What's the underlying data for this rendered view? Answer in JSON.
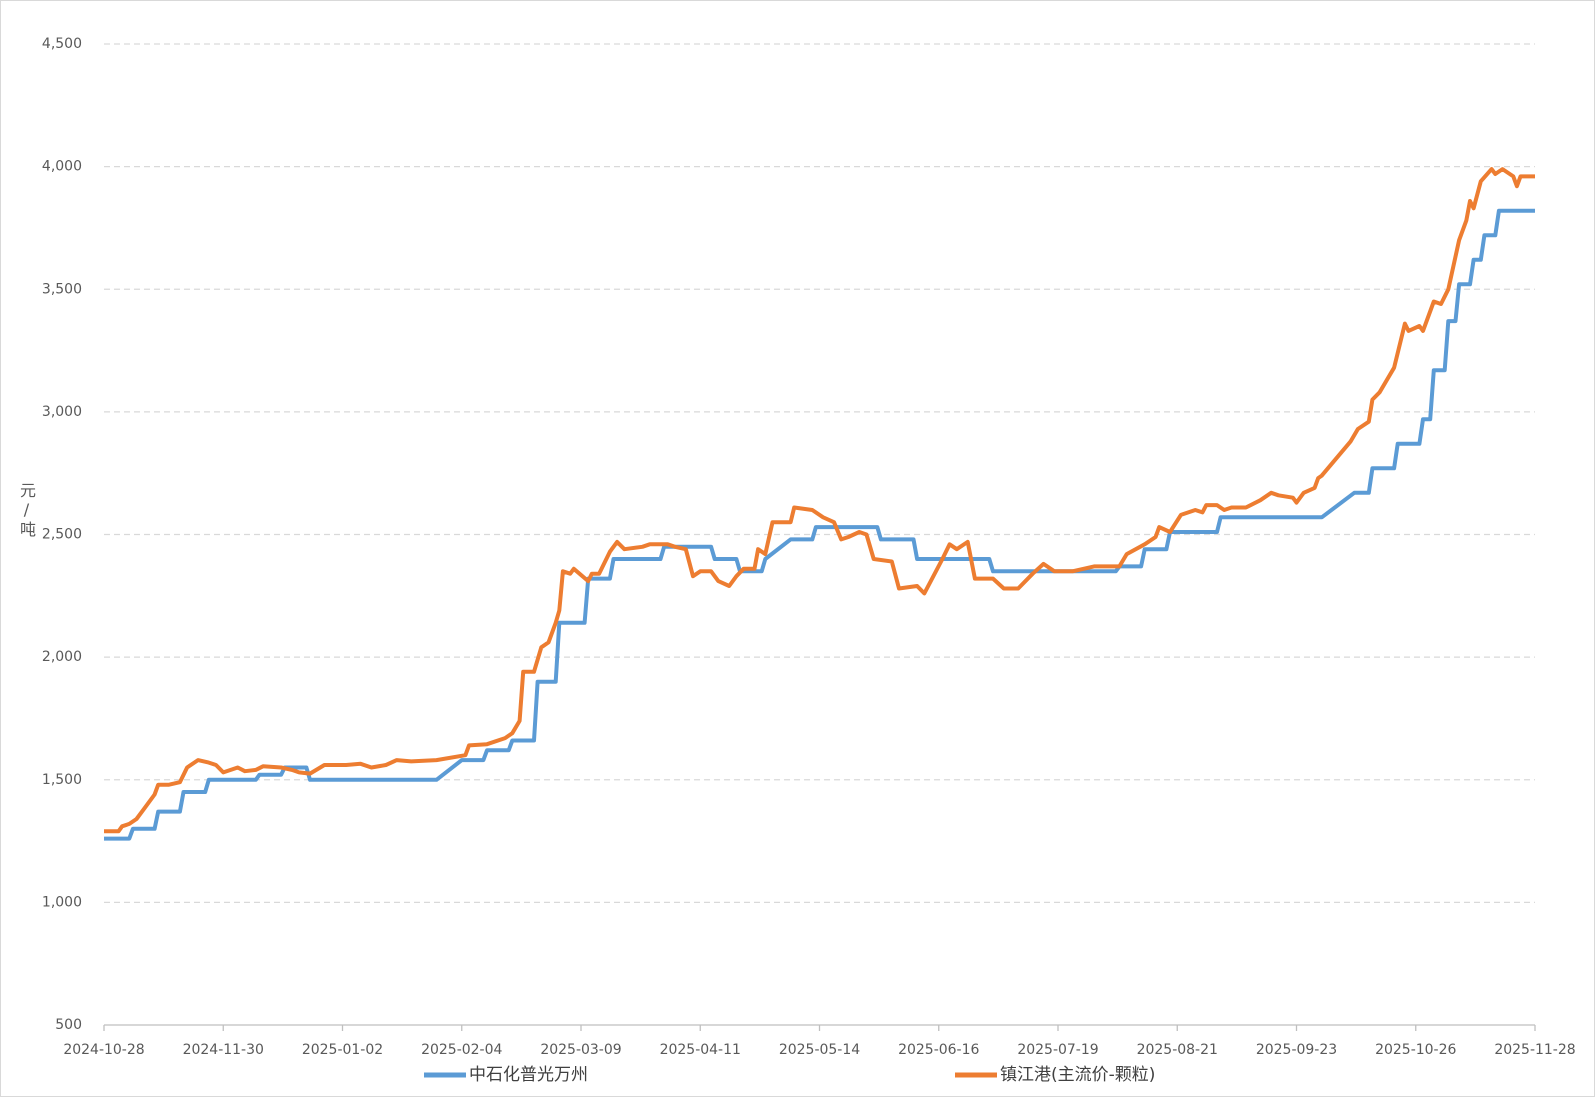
{
  "chart_data": {
    "type": "line",
    "y_label": "元/吨",
    "xlim": [
      "2024-10-28",
      "2025-11-28"
    ],
    "xticks": [
      "2024-10-28",
      "2024-11-30",
      "2025-01-02",
      "2025-02-04",
      "2025-03-09",
      "2025-04-11",
      "2025-05-14",
      "2025-06-16",
      "2025-07-19",
      "2025-08-21",
      "2025-09-23",
      "2025-10-26",
      "2025-11-28"
    ],
    "ylim": [
      500,
      4500
    ],
    "yticks": [
      {
        "value": 500,
        "label": "500"
      },
      {
        "value": 1000,
        "label": "1,000"
      },
      {
        "value": 1500,
        "label": "1,500"
      },
      {
        "value": 2000,
        "label": "2,000"
      },
      {
        "value": 2500,
        "label": "2,500"
      },
      {
        "value": 3000,
        "label": "3,000"
      },
      {
        "value": 3500,
        "label": "3,500"
      },
      {
        "value": 4000,
        "label": "4,000"
      },
      {
        "value": 4500,
        "label": "4,500"
      }
    ],
    "grid": true,
    "legend": "bottom",
    "series": [
      {
        "name": "中石化普光万州",
        "color": "#5b9bd5",
        "x": [
          "2024-10-28",
          "2024-11-04",
          "2024-11-05",
          "2024-11-11",
          "2024-11-12",
          "2024-11-18",
          "2024-11-19",
          "2024-11-25",
          "2024-11-26",
          "2024-12-09",
          "2024-12-10",
          "2024-12-16",
          "2024-12-17",
          "2024-12-23",
          "2024-12-24",
          "2025-01-28",
          "2025-02-04",
          "2025-02-10",
          "2025-02-11",
          "2025-02-17",
          "2025-02-18",
          "2025-02-24",
          "2025-02-25",
          "2025-03-02",
          "2025-03-03",
          "2025-03-10",
          "2025-03-11",
          "2025-03-17",
          "2025-03-18",
          "2025-03-31",
          "2025-04-01",
          "2025-04-14",
          "2025-04-15",
          "2025-04-21",
          "2025-04-22",
          "2025-04-28",
          "2025-04-29",
          "2025-05-06",
          "2025-05-12",
          "2025-05-13",
          "2025-05-30",
          "2025-05-31",
          "2025-06-09",
          "2025-06-10",
          "2025-06-30",
          "2025-07-01",
          "2025-08-04",
          "2025-08-05",
          "2025-08-11",
          "2025-08-12",
          "2025-08-18",
          "2025-08-19",
          "2025-09-01",
          "2025-09-02",
          "2025-09-30",
          "2025-10-09",
          "2025-10-13",
          "2025-10-14",
          "2025-10-20",
          "2025-10-21",
          "2025-10-27",
          "2025-10-28",
          "2025-10-30",
          "2025-10-31",
          "2025-11-03",
          "2025-11-04",
          "2025-11-06",
          "2025-11-07",
          "2025-11-10",
          "2025-11-11",
          "2025-11-13",
          "2025-11-14",
          "2025-11-17",
          "2025-11-18",
          "2025-11-28"
        ],
        "values": [
          1260,
          1260,
          1300,
          1300,
          1370,
          1370,
          1450,
          1450,
          1500,
          1500,
          1520,
          1520,
          1550,
          1550,
          1500,
          1500,
          1580,
          1580,
          1620,
          1620,
          1660,
          1660,
          1900,
          1900,
          2140,
          2140,
          2320,
          2320,
          2400,
          2400,
          2450,
          2450,
          2400,
          2400,
          2350,
          2350,
          2400,
          2480,
          2480,
          2530,
          2530,
          2480,
          2480,
          2400,
          2400,
          2350,
          2350,
          2370,
          2370,
          2440,
          2440,
          2510,
          2510,
          2570,
          2570,
          2670,
          2670,
          2770,
          2770,
          2870,
          2870,
          2970,
          2970,
          3170,
          3170,
          3370,
          3370,
          3520,
          3520,
          3620,
          3620,
          3720,
          3720,
          3820,
          3820
        ]
      },
      {
        "name": "镇江港(主流价-颗粒)",
        "color": "#ed7d31",
        "x": [
          "2024-10-28",
          "2024-11-01",
          "2024-11-02",
          "2024-11-04",
          "2024-11-06",
          "2024-11-08",
          "2024-11-11",
          "2024-11-12",
          "2024-11-15",
          "2024-11-18",
          "2024-11-20",
          "2024-11-22",
          "2024-11-23",
          "2024-11-26",
          "2024-11-28",
          "2024-11-30",
          "2024-12-04",
          "2024-12-06",
          "2024-12-09",
          "2024-12-11",
          "2024-12-16",
          "2024-12-19",
          "2024-12-21",
          "2024-12-24",
          "2024-12-28",
          "2025-01-03",
          "2025-01-07",
          "2025-01-10",
          "2025-01-14",
          "2025-01-17",
          "2025-01-21",
          "2025-01-28",
          "2025-02-05",
          "2025-02-06",
          "2025-02-11",
          "2025-02-16",
          "2025-02-18",
          "2025-02-20",
          "2025-02-21",
          "2025-02-24",
          "2025-02-26",
          "2025-02-28",
          "2025-03-02",
          "2025-03-03",
          "2025-03-04",
          "2025-03-06",
          "2025-03-07",
          "2025-03-11",
          "2025-03-12",
          "2025-03-14",
          "2025-03-17",
          "2025-03-19",
          "2025-03-21",
          "2025-03-26",
          "2025-03-28",
          "2025-04-02",
          "2025-04-04",
          "2025-04-07",
          "2025-04-09",
          "2025-04-11",
          "2025-04-14",
          "2025-04-16",
          "2025-04-19",
          "2025-04-21",
          "2025-04-23",
          "2025-04-26",
          "2025-04-27",
          "2025-04-29",
          "2025-05-01",
          "2025-05-06",
          "2025-05-07",
          "2025-05-12",
          "2025-05-15",
          "2025-05-18",
          "2025-05-20",
          "2025-05-22",
          "2025-05-25",
          "2025-05-27",
          "2025-05-29",
          "2025-06-03",
          "2025-06-05",
          "2025-06-10",
          "2025-06-12",
          "2025-06-17",
          "2025-06-19",
          "2025-06-21",
          "2025-06-24",
          "2025-06-26",
          "2025-07-01",
          "2025-07-04",
          "2025-07-08",
          "2025-07-12",
          "2025-07-15",
          "2025-07-18",
          "2025-07-23",
          "2025-07-29",
          "2025-08-05",
          "2025-08-07",
          "2025-08-12",
          "2025-08-15",
          "2025-08-16",
          "2025-08-19",
          "2025-08-22",
          "2025-08-26",
          "2025-08-28",
          "2025-08-29",
          "2025-09-01",
          "2025-09-03",
          "2025-09-05",
          "2025-09-09",
          "2025-09-13",
          "2025-09-16",
          "2025-09-18",
          "2025-09-22",
          "2025-09-23",
          "2025-09-25",
          "2025-09-28",
          "2025-09-29",
          "2025-09-30",
          "2025-10-08",
          "2025-10-10",
          "2025-10-13",
          "2025-10-14",
          "2025-10-16",
          "2025-10-20",
          "2025-10-23",
          "2025-10-24",
          "2025-10-27",
          "2025-10-28",
          "2025-10-31",
          "2025-11-02",
          "2025-11-04",
          "2025-11-07",
          "2025-11-09",
          "2025-11-10",
          "2025-11-11",
          "2025-11-13",
          "2025-11-16",
          "2025-11-17",
          "2025-11-19",
          "2025-11-22",
          "2025-11-23",
          "2025-11-24",
          "2025-11-28"
        ],
        "values": [
          1290,
          1290,
          1310,
          1320,
          1340,
          1380,
          1440,
          1480,
          1480,
          1490,
          1550,
          1570,
          1580,
          1570,
          1560,
          1530,
          1550,
          1535,
          1540,
          1555,
          1550,
          1540,
          1530,
          1525,
          1560,
          1560,
          1565,
          1550,
          1560,
          1580,
          1575,
          1580,
          1600,
          1640,
          1645,
          1670,
          1690,
          1740,
          1940,
          1940,
          2040,
          2060,
          2140,
          2190,
          2350,
          2340,
          2360,
          2310,
          2340,
          2340,
          2430,
          2470,
          2440,
          2450,
          2460,
          2460,
          2450,
          2440,
          2330,
          2350,
          2350,
          2310,
          2290,
          2330,
          2360,
          2360,
          2440,
          2420,
          2550,
          2550,
          2610,
          2600,
          2570,
          2550,
          2480,
          2490,
          2510,
          2500,
          2400,
          2390,
          2280,
          2290,
          2260,
          2400,
          2460,
          2440,
          2470,
          2320,
          2320,
          2280,
          2280,
          2340,
          2380,
          2350,
          2350,
          2370,
          2370,
          2420,
          2460,
          2490,
          2530,
          2510,
          2580,
          2600,
          2590,
          2620,
          2620,
          2600,
          2610,
          2610,
          2640,
          2670,
          2660,
          2650,
          2630,
          2670,
          2690,
          2730,
          2740,
          2880,
          2930,
          2960,
          3050,
          3080,
          3180,
          3360,
          3330,
          3350,
          3330,
          3450,
          3440,
          3500,
          3700,
          3780,
          3860,
          3830,
          3940,
          3990,
          3970,
          3990,
          3960,
          3920,
          3960,
          3960
        ]
      }
    ]
  }
}
